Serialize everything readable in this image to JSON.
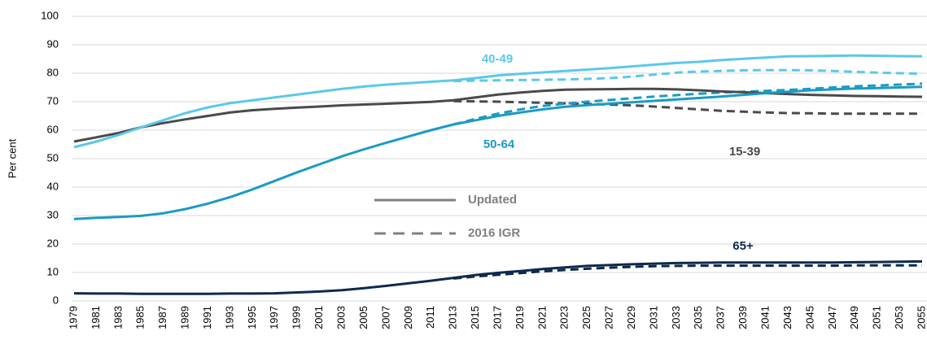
{
  "chart_data": {
    "type": "line",
    "y_label": "Per cent",
    "x": [
      1979,
      1981,
      1983,
      1985,
      1987,
      1989,
      1991,
      1993,
      1995,
      1997,
      1999,
      2001,
      2003,
      2005,
      2007,
      2009,
      2011,
      2013,
      2015,
      2017,
      2019,
      2021,
      2023,
      2025,
      2027,
      2029,
      2031,
      2033,
      2035,
      2037,
      2039,
      2041,
      2043,
      2045,
      2047,
      2049,
      2051,
      2053,
      2055
    ],
    "xlim": [
      1979,
      2055
    ],
    "xticks": [
      1979,
      1981,
      1983,
      1985,
      1987,
      1989,
      1991,
      1993,
      1995,
      1997,
      1999,
      2001,
      2003,
      2005,
      2007,
      2009,
      2011,
      2013,
      2015,
      2017,
      2019,
      2021,
      2023,
      2025,
      2027,
      2029,
      2031,
      2033,
      2035,
      2037,
      2039,
      2041,
      2043,
      2045,
      2047,
      2049,
      2051,
      2053,
      2055
    ],
    "ylim": [
      0,
      100
    ],
    "yticks": [
      0,
      10,
      20,
      30,
      40,
      50,
      60,
      70,
      80,
      90,
      100
    ],
    "grid": true,
    "legend": [
      {
        "name": "Updated",
        "dashed": false
      },
      {
        "name": "2016 IGR",
        "dashed": true
      }
    ],
    "series": [
      {
        "name": "15-39",
        "color": "#4a4a4a",
        "values": [
          56,
          57.5,
          59,
          61,
          62.5,
          63.8,
          65,
          66.2,
          67,
          67.5,
          67.9,
          68.3,
          68.7,
          69,
          69.3,
          69.6,
          69.9,
          70.5,
          71.5,
          72.5,
          73.2,
          73.8,
          74.2,
          74.3,
          74.4,
          74.5,
          74.5,
          74.3,
          74,
          73.6,
          73.3,
          73,
          72.7,
          72.4,
          72.2,
          72,
          71.9,
          71.8,
          71.7
        ],
        "values_2016_igr": [
          null,
          null,
          null,
          null,
          null,
          null,
          null,
          null,
          null,
          null,
          null,
          null,
          null,
          null,
          null,
          null,
          null,
          70.2,
          70.1,
          70,
          69.8,
          69.6,
          69.4,
          69.2,
          69,
          68.7,
          68.3,
          67.8,
          67.3,
          66.8,
          66.5,
          66.2,
          66,
          65.9,
          65.8,
          65.8,
          65.8,
          65.8,
          65.8
        ]
      },
      {
        "name": "40-49",
        "color": "#5bc8ea",
        "values": [
          54,
          56,
          58.3,
          61,
          63.5,
          66,
          68,
          69.5,
          70.5,
          71.5,
          72.5,
          73.5,
          74.5,
          75.3,
          76,
          76.5,
          77,
          77.5,
          78.3,
          79.2,
          79.8,
          80.3,
          80.8,
          81.3,
          81.8,
          82.4,
          83,
          83.6,
          84,
          84.6,
          85.1,
          85.5,
          85.9,
          86,
          86.1,
          86.2,
          86.1,
          86,
          85.9
        ],
        "values_2016_igr": [
          null,
          null,
          null,
          null,
          null,
          null,
          null,
          null,
          null,
          null,
          null,
          null,
          null,
          null,
          null,
          null,
          null,
          77.2,
          77.4,
          77.5,
          77.6,
          77.7,
          77.8,
          78,
          78.3,
          78.8,
          79.5,
          80.2,
          80.6,
          80.8,
          81,
          81.1,
          81.1,
          81,
          80.8,
          80.5,
          80.2,
          80,
          79.8
        ]
      },
      {
        "name": "50-64",
        "color": "#1a9bc4",
        "values": [
          28.8,
          29.2,
          29.5,
          29.9,
          30.8,
          32.3,
          34.2,
          36.5,
          39.2,
          42.2,
          45.2,
          48,
          50.8,
          53.3,
          55.6,
          57.8,
          60,
          62,
          63.5,
          65,
          66.2,
          67.3,
          68.2,
          68.8,
          69.3,
          69.8,
          70.3,
          70.8,
          71.3,
          71.8,
          72.4,
          73,
          73.5,
          74,
          74.3,
          74.6,
          74.8,
          75,
          75.2
        ],
        "values_2016_igr": [
          null,
          null,
          null,
          null,
          null,
          null,
          null,
          null,
          null,
          null,
          null,
          null,
          null,
          null,
          null,
          null,
          null,
          62,
          64,
          65.8,
          67.3,
          68.5,
          69.3,
          70,
          70.6,
          71.2,
          71.8,
          72.3,
          72.8,
          73.2,
          73.5,
          73.8,
          74.1,
          74.5,
          75,
          75.4,
          75.7,
          76,
          76.3
        ]
      },
      {
        "name": "65+",
        "color": "#0d2a4e",
        "values": [
          2.7,
          2.6,
          2.6,
          2.5,
          2.5,
          2.5,
          2.5,
          2.6,
          2.6,
          2.7,
          3,
          3.3,
          3.8,
          4.5,
          5.3,
          6.2,
          7.1,
          8.1,
          9.1,
          9.9,
          10.5,
          11.2,
          11.8,
          12.3,
          12.6,
          12.9,
          13.1,
          13.3,
          13.4,
          13.5,
          13.5,
          13.5,
          13.5,
          13.5,
          13.5,
          13.6,
          13.7,
          13.8,
          13.9
        ],
        "values_2016_igr": [
          null,
          null,
          null,
          null,
          null,
          null,
          null,
          null,
          null,
          null,
          null,
          null,
          null,
          null,
          null,
          null,
          null,
          7.9,
          8.6,
          9.2,
          9.8,
          10.4,
          10.9,
          11.3,
          11.7,
          12,
          12.2,
          12.3,
          12.4,
          12.4,
          12.4,
          12.4,
          12.4,
          12.4,
          12.4,
          12.5,
          12.5,
          12.5,
          12.5
        ]
      }
    ]
  }
}
